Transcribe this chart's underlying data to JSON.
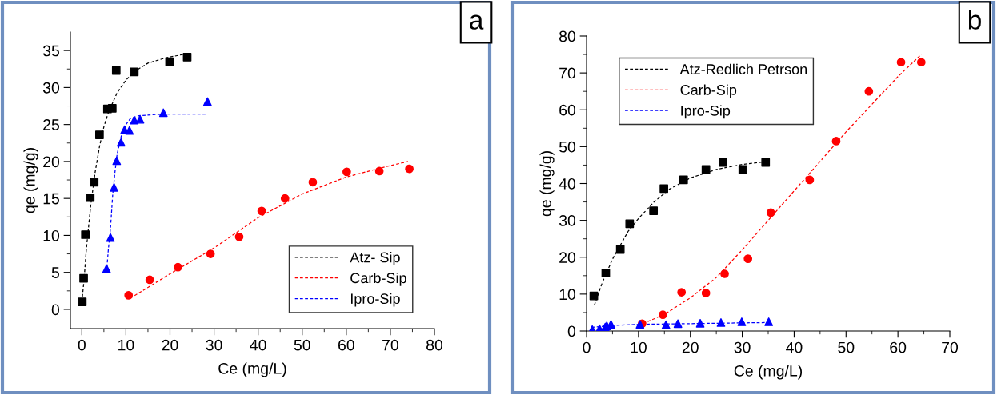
{
  "chart_data": [
    {
      "type": "scatter",
      "xlabel": "Ce (mg/L)",
      "ylabel": "qe (mg/g)",
      "annotations": [
        "a"
      ],
      "xlim": [
        -2.6,
        80
      ],
      "xticks": [
        0,
        10,
        20,
        30,
        40,
        50,
        60,
        70,
        80
      ],
      "ylim": [
        -2.6,
        37.5
      ],
      "yticks": [
        0,
        5,
        10,
        15,
        20,
        25,
        30,
        35
      ],
      "grid": false,
      "legend": "bottom right",
      "series": [
        {
          "color": "#000000",
          "marker": "square",
          "x": [
            0.1,
            0.4,
            0.8,
            1.9,
            2.8,
            4.0,
            5.8,
            6.9,
            7.8,
            11.9,
            19.9,
            23.9
          ],
          "values": [
            1.0,
            4.2,
            10.1,
            15.1,
            17.2,
            23.6,
            27.1,
            27.2,
            32.3,
            32.1,
            33.5,
            34.1
          ]
        },
        {
          "color": "#ff0000",
          "marker": "circle",
          "x": [
            10.6,
            15.4,
            21.8,
            29.2,
            35.7,
            40.8,
            46.1,
            52.4,
            60.1,
            67.5,
            74.3
          ],
          "values": [
            1.9,
            4.0,
            5.7,
            7.5,
            9.8,
            13.3,
            15.0,
            17.2,
            18.6,
            18.7,
            19.0
          ]
        },
        {
          "color": "#0000ff",
          "marker": "triangle",
          "x": [
            5.6,
            6.5,
            7.3,
            7.9,
            8.9,
            9.7,
            10.8,
            11.9,
            13.2,
            18.5,
            28.5
          ],
          "values": [
            5.5,
            9.7,
            16.5,
            20.1,
            22.6,
            24.3,
            24.2,
            25.6,
            25.7,
            26.6,
            28.1
          ]
        },
        {
          "type": "line",
          "name": "Atz- Sip",
          "color": "#000000",
          "line_style": "dashed",
          "x": [
            0,
            0.5,
            1,
            2,
            3,
            4,
            5,
            6,
            8,
            10,
            12,
            15,
            19,
            24
          ],
          "values": [
            1,
            4,
            8,
            14,
            18.5,
            22,
            24.7,
            26.6,
            29.3,
            31,
            32.2,
            33.3,
            34,
            34.6
          ]
        },
        {
          "type": "line",
          "name": "Carb-Sip",
          "color": "#ff0000",
          "line_style": "dashed",
          "x": [
            11,
            20,
            30,
            40,
            50,
            60,
            69,
            74
          ],
          "values": [
            1.5,
            4.8,
            8.3,
            12.4,
            15.6,
            17.9,
            19.3,
            20
          ]
        },
        {
          "type": "line",
          "name": "Ipro-Sip",
          "color": "#0000ff",
          "line_style": "dashed",
          "x": [
            5.6,
            6,
            6.5,
            7,
            7.5,
            8,
            9,
            10,
            11,
            13,
            18,
            28.5
          ],
          "values": [
            5,
            8,
            11,
            15.5,
            18.5,
            21,
            23.6,
            25,
            25.8,
            26.2,
            26.4,
            26.4
          ]
        }
      ]
    },
    {
      "type": "scatter",
      "xlabel": "Ce (mg/L)",
      "ylabel": "qe (mg/g)",
      "annotations": [
        "b"
      ],
      "xlim": [
        0,
        70
      ],
      "xticks": [
        0,
        10,
        20,
        30,
        40,
        50,
        60,
        70
      ],
      "ylim": [
        0,
        80
      ],
      "yticks": [
        0,
        10,
        20,
        30,
        40,
        50,
        60,
        70,
        80
      ],
      "grid": false,
      "legend": "top left",
      "series": [
        {
          "color": "#000000",
          "marker": "square",
          "x": [
            1.4,
            3.7,
            6.5,
            8.3,
            12.9,
            14.9,
            18.7,
            23.0,
            26.3,
            30.1,
            34.5
          ],
          "values": [
            9.5,
            15.7,
            22.1,
            29.1,
            32.6,
            38.6,
            41.0,
            43.8,
            45.7,
            43.8,
            45.7
          ]
        },
        {
          "color": "#ff0000",
          "marker": "circle",
          "x": [
            10.7,
            14.7,
            18.3,
            23.0,
            26.6,
            31.1,
            35.5,
            43.0,
            48.1,
            54.4,
            60.6,
            64.5
          ],
          "values": [
            2.0,
            4.4,
            10.5,
            10.3,
            15.5,
            19.6,
            32.1,
            41.0,
            51.5,
            65.0,
            72.9,
            72.9
          ]
        },
        {
          "color": "#0000ff",
          "marker": "triangle",
          "x": [
            1.1,
            2.5,
            3.6,
            3.9,
            4.7,
            10.3,
            15.3,
            17.6,
            21.9,
            25.9,
            29.9,
            35.1
          ],
          "values": [
            0.4,
            0.6,
            1.1,
            1.4,
            1.8,
            1.8,
            1.7,
            2.0,
            2.1,
            2.3,
            2.5,
            2.5
          ]
        },
        {
          "type": "line",
          "name": "Atz-Redlich Petrson",
          "color": "#000000",
          "line_style": "dashed",
          "x": [
            1.5,
            3,
            5,
            8,
            10,
            13,
            16,
            20,
            25,
            30,
            35
          ],
          "values": [
            7,
            13,
            19.5,
            27,
            30.5,
            35,
            38.5,
            41.5,
            43.8,
            45.2,
            46
          ]
        },
        {
          "type": "line",
          "name": "Carb-Sip",
          "color": "#ff0000",
          "line_style": "dashed",
          "x": [
            10,
            15,
            20,
            25,
            30,
            35,
            40,
            45,
            50,
            55,
            60,
            64.5
          ],
          "values": [
            1.5,
            4.5,
            9,
            14.5,
            22,
            30,
            38,
            46,
            54,
            61.5,
            69,
            75
          ]
        },
        {
          "type": "line",
          "name": "Ipro-Sip",
          "color": "#0000ff",
          "line_style": "dashed",
          "x": [
            1,
            5,
            10,
            20,
            35
          ],
          "values": [
            1,
            1.5,
            1.8,
            2.0,
            2.3
          ]
        }
      ]
    }
  ]
}
